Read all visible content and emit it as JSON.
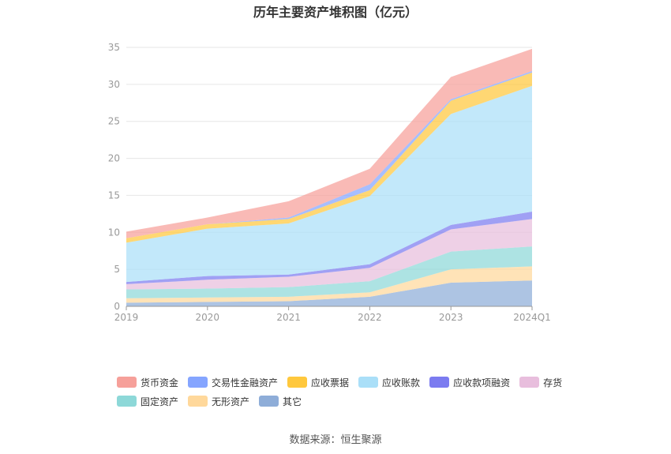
{
  "chart_data": {
    "type": "area",
    "stacked": true,
    "title": "历年主要资产堆积图（亿元）",
    "categories": [
      "2019",
      "2020",
      "2021",
      "2022",
      "2023",
      "2024Q1"
    ],
    "ylim": [
      0,
      35
    ],
    "yticks": [
      0,
      5,
      10,
      15,
      20,
      25,
      30,
      35
    ],
    "grid": true,
    "legend_position": "bottom",
    "series": [
      {
        "name": "其它",
        "color": "#8eadd8",
        "values": [
          0.5,
          0.6,
          0.7,
          1.3,
          3.2,
          3.5
        ]
      },
      {
        "name": "无形资产",
        "color": "#ffd89b",
        "values": [
          0.6,
          0.6,
          0.6,
          0.6,
          1.8,
          1.9
        ]
      },
      {
        "name": "固定资产",
        "color": "#8dd8d8",
        "values": [
          1.2,
          1.2,
          1.3,
          1.5,
          2.4,
          2.7
        ]
      },
      {
        "name": "存货",
        "color": "#e8bedd",
        "values": [
          0.7,
          1.2,
          1.4,
          1.8,
          3.0,
          3.7
        ]
      },
      {
        "name": "应收款项融资",
        "color": "#7b7bf0",
        "values": [
          0.3,
          0.5,
          0.3,
          0.5,
          0.6,
          1.0
        ]
      },
      {
        "name": "应收账款",
        "color": "#aadff8",
        "values": [
          5.3,
          6.4,
          6.9,
          9.2,
          15.0,
          17.0
        ]
      },
      {
        "name": "应收票据",
        "color": "#ffc83d",
        "values": [
          0.6,
          0.6,
          0.6,
          0.8,
          1.8,
          1.8
        ]
      },
      {
        "name": "交易性金融资产",
        "color": "#85a5ff",
        "values": [
          0,
          0,
          0.2,
          0.8,
          0.2,
          0.2
        ]
      },
      {
        "name": "货币资金",
        "color": "#f6a09a",
        "values": [
          0.9,
          0.9,
          2.2,
          2.1,
          3.0,
          3.0
        ]
      }
    ]
  },
  "legend": {
    "row1": [
      "货币资金",
      "交易性金融资产",
      "应收票据",
      "应收账款",
      "应收款项融资",
      "存货"
    ],
    "row2": [
      "固定资产",
      "无形资产",
      "其它"
    ]
  },
  "source": "数据来源：恒生聚源"
}
